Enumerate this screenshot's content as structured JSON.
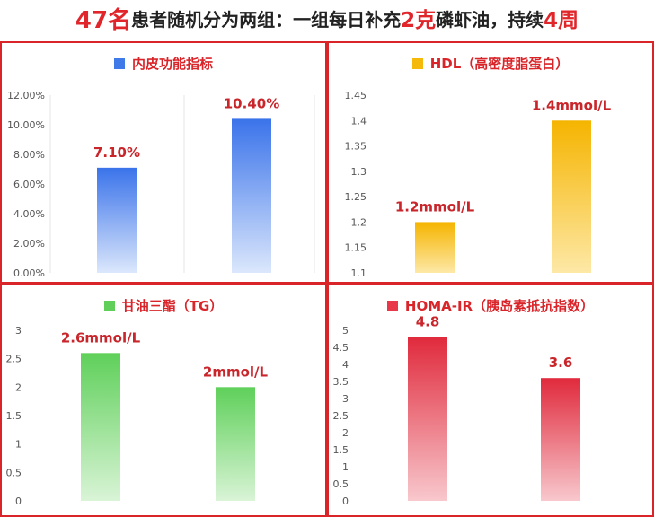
{
  "headline": {
    "count": "47名",
    "text1": "患者随机分为两组：一组每日补充",
    "dose": "2克",
    "text2": "磷虾油，持续",
    "duration": "4周"
  },
  "chart_data": [
    {
      "type": "bar",
      "title": "内皮功能指标",
      "legend_color": "#3f7ae8",
      "bar_top_color": "#3a73ea",
      "bar_bottom_color": "#dbe7fc",
      "categories": [
        "",
        ""
      ],
      "values": [
        7.1,
        10.4
      ],
      "data_labels": [
        "7.10%",
        "10.40%"
      ],
      "ylim": [
        0,
        12
      ],
      "yticks": [
        "0.00%",
        "2.00%",
        "4.00%",
        "6.00%",
        "8.00%",
        "10.00%",
        "12.00%"
      ],
      "grid": "vertical-only"
    },
    {
      "type": "bar",
      "title": "HDL（高密度脂蛋白）",
      "legend_color": "#f5b90a",
      "bar_top_color": "#f5b400",
      "bar_bottom_color": "#fde8a6",
      "categories": [
        "",
        ""
      ],
      "values": [
        1.2,
        1.4
      ],
      "data_labels": [
        "1.2mmol/L",
        "1.4mmol/L"
      ],
      "ylim": [
        1.1,
        1.45
      ],
      "yticks": [
        "1.1",
        "1.15",
        "1.2",
        "1.25",
        "1.3",
        "1.35",
        "1.4",
        "1.45"
      ],
      "grid": "none"
    },
    {
      "type": "bar",
      "title": "甘油三酯（TG）",
      "legend_color": "#5fcf5a",
      "bar_top_color": "#5fd05a",
      "bar_bottom_color": "#d9f4d6",
      "categories": [
        "",
        ""
      ],
      "values": [
        2.6,
        2.0
      ],
      "data_labels": [
        "2.6mmol/L",
        "2mmol/L"
      ],
      "ylim": [
        0,
        3
      ],
      "yticks": [
        "0",
        "0.5",
        "1",
        "1.5",
        "2",
        "2.5",
        "3"
      ],
      "grid": "none"
    },
    {
      "type": "bar",
      "title": "HOMA-IR（胰岛素抵抗指数）",
      "legend_color": "#e8384a",
      "bar_top_color": "#e02a3c",
      "bar_bottom_color": "#f8c8cd",
      "categories": [
        "",
        ""
      ],
      "values": [
        4.8,
        3.6
      ],
      "data_labels": [
        "4.8",
        "3.6"
      ],
      "ylim": [
        0,
        5
      ],
      "yticks": [
        "0",
        "0.5",
        "1",
        "1.5",
        "2",
        "2.5",
        "3",
        "3.5",
        "4",
        "4.5",
        "5"
      ],
      "grid": "none"
    }
  ]
}
